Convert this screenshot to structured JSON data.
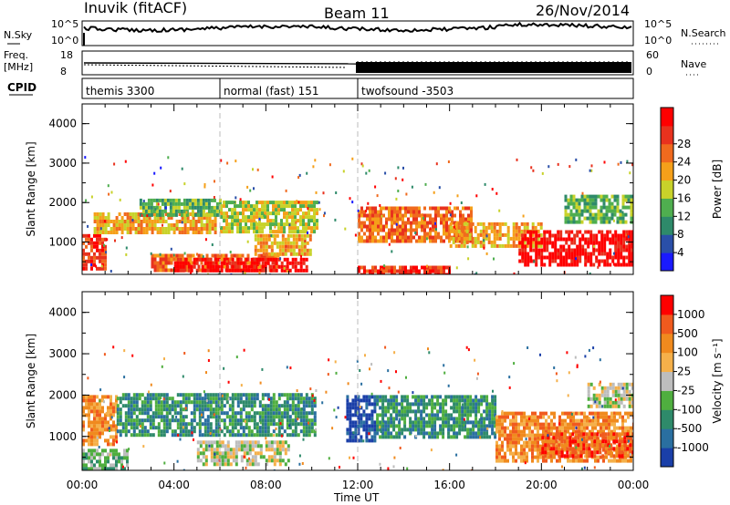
{
  "header": {
    "site": "Inuvik (fitACF)",
    "beam": "Beam 11",
    "date": "26/Nov/2014"
  },
  "strip_labels": {
    "nsky": "N.Sky",
    "nsearch": "N.Search",
    "freq_line1": "Freq.",
    "freq_line2": "[MHz]",
    "nave": "Nave",
    "cpid": "CPID"
  },
  "noise_axis": {
    "left_ticks": [
      "10^5",
      "10^0"
    ],
    "right_ticks": [
      "10^5",
      "10^0"
    ]
  },
  "freq_axis": {
    "left_ticks": [
      "18",
      "8"
    ],
    "right_ticks": [
      "60",
      "0"
    ]
  },
  "cpid_segments": [
    {
      "label": "themis 3300",
      "start_h": 0.0,
      "end_h": 6.0
    },
    {
      "label": "normal (fast) 151",
      "start_h": 6.0,
      "end_h": 12.0
    },
    {
      "label": "twofsound -3503",
      "start_h": 12.0,
      "end_h": 24.0
    }
  ],
  "chart_data": [
    {
      "type": "heatmap",
      "name": "power",
      "ylabel": "Slant Range [km]",
      "xlabel": "Time UT",
      "x_ticks": [
        "00:00",
        "04:00",
        "08:00",
        "12:00",
        "16:00",
        "20:00",
        "00:00"
      ],
      "xlim_hours": [
        0,
        24
      ],
      "y_ticks": [
        "1000",
        "2000",
        "3000",
        "4000"
      ],
      "ylim": [
        180,
        4500
      ],
      "colorbar": {
        "label": "Power [dB]",
        "ticks": [
          "4",
          "8",
          "12",
          "16",
          "20",
          "24",
          "28"
        ],
        "colors": [
          "#1a1aff",
          "#2a4fa8",
          "#2e8a6a",
          "#4fae4f",
          "#c8d22a",
          "#f5a01a",
          "#f06a1e",
          "#e8321e",
          "#ff0000"
        ]
      },
      "regions": [
        {
          "t0": 0.0,
          "t1": 1.0,
          "r0": 300,
          "r1": 1200,
          "level": 7
        },
        {
          "t0": 0.5,
          "t1": 5.8,
          "r0": 1200,
          "r1": 1750,
          "level": 5
        },
        {
          "t0": 2.5,
          "t1": 6.0,
          "r0": 1700,
          "r1": 2100,
          "level": 3
        },
        {
          "t0": 3.0,
          "t1": 8.5,
          "r0": 300,
          "r1": 700,
          "level": 6
        },
        {
          "t0": 4.0,
          "t1": 9.8,
          "r0": 250,
          "r1": 600,
          "level": 8
        },
        {
          "t0": 6.0,
          "t1": 10.2,
          "r0": 1300,
          "r1": 2050,
          "level": 4
        },
        {
          "t0": 7.5,
          "t1": 10.0,
          "r0": 700,
          "r1": 1200,
          "level": 5
        },
        {
          "t0": 12.0,
          "t1": 17.0,
          "r0": 1050,
          "r1": 1900,
          "level": 6
        },
        {
          "t0": 12.0,
          "t1": 16.0,
          "r0": 200,
          "r1": 400,
          "level": 7
        },
        {
          "t0": 16.0,
          "t1": 20.0,
          "r0": 900,
          "r1": 1500,
          "level": 5
        },
        {
          "t0": 19.0,
          "t1": 24.0,
          "r0": 400,
          "r1": 1300,
          "level": 8
        },
        {
          "t0": 21.0,
          "t1": 24.0,
          "r0": 1500,
          "r1": 2200,
          "level": 3
        }
      ]
    },
    {
      "type": "heatmap",
      "name": "velocity",
      "ylabel": "Slant Range [km]",
      "xlabel": "Time UT",
      "x_ticks": [
        "00:00",
        "04:00",
        "08:00",
        "12:00",
        "16:00",
        "20:00",
        "00:00"
      ],
      "xlim_hours": [
        0,
        24
      ],
      "y_ticks": [
        "1000",
        "2000",
        "3000",
        "4000"
      ],
      "ylim": [
        180,
        4500
      ],
      "colorbar": {
        "label": "Velocity [m s⁻¹]",
        "ticks": [
          "1000",
          "500",
          "100",
          "25",
          "-25",
          "-100",
          "-500",
          "-1000"
        ],
        "colors": [
          "#1a3fa8",
          "#2a6fa0",
          "#2e8a6a",
          "#4fae3f",
          "#bdbdbd",
          "#f5b04a",
          "#f08a1e",
          "#f05a1e",
          "#ff0000"
        ]
      },
      "regions": [
        {
          "t0": 0.0,
          "t1": 1.5,
          "r0": 800,
          "r1": 2000,
          "level": 6
        },
        {
          "t0": 0.0,
          "t1": 2.0,
          "r0": 200,
          "r1": 700,
          "level": 3
        },
        {
          "t0": 1.5,
          "t1": 10.2,
          "r0": 1000,
          "r1": 2050,
          "level": 2
        },
        {
          "t0": 5.0,
          "t1": 9.0,
          "r0": 300,
          "r1": 900,
          "level": 4
        },
        {
          "t0": 11.5,
          "t1": 12.8,
          "r0": 900,
          "r1": 2000,
          "level": 0
        },
        {
          "t0": 12.8,
          "t1": 18.0,
          "r0": 1000,
          "r1": 2000,
          "level": 2
        },
        {
          "t0": 18.0,
          "t1": 24.0,
          "r0": 400,
          "r1": 1600,
          "level": 6
        },
        {
          "t0": 20.0,
          "t1": 24.0,
          "r0": 500,
          "r1": 1100,
          "level": 7
        },
        {
          "t0": 22.0,
          "t1": 24.0,
          "r0": 1700,
          "r1": 2300,
          "level": 4
        }
      ]
    }
  ]
}
